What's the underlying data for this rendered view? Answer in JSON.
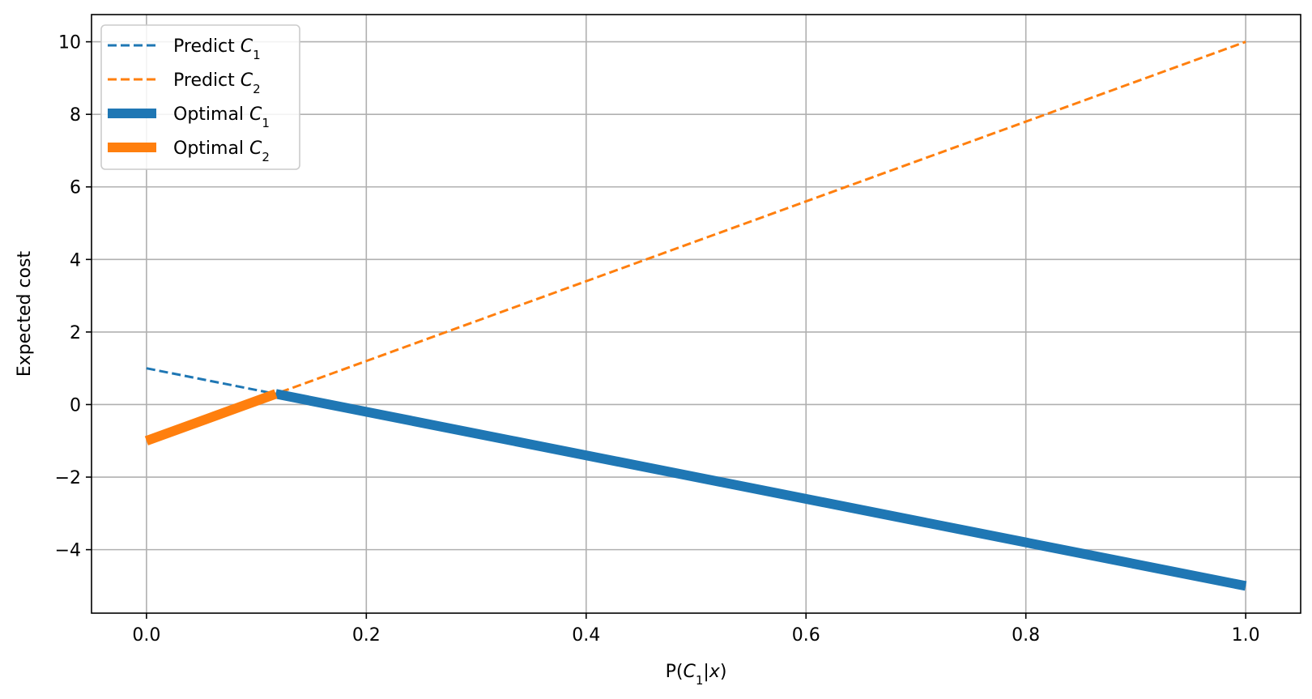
{
  "chart_data": {
    "type": "line",
    "xlabel": "P(C1|x)",
    "ylabel": "Expected cost",
    "xlim": [
      -0.05,
      1.05
    ],
    "ylim": [
      -5.75,
      10.75
    ],
    "grid": true,
    "legend_position": "top-left",
    "x_ticks": [
      0.0,
      0.2,
      0.4,
      0.6,
      0.8,
      1.0
    ],
    "x_tick_labels": [
      "0.0",
      "0.2",
      "0.4",
      "0.6",
      "0.8",
      "1.0"
    ],
    "y_ticks": [
      -4,
      -2,
      0,
      2,
      4,
      6,
      8,
      10
    ],
    "y_tick_labels": [
      "−4",
      "−2",
      "0",
      "2",
      "4",
      "6",
      "8",
      "10"
    ],
    "series": [
      {
        "name": "Predict C1",
        "style": "dashed",
        "color": "#1f77b4",
        "x": [
          0.0,
          1.0
        ],
        "y": [
          1.0,
          -5.0
        ]
      },
      {
        "name": "Predict C2",
        "style": "dashed",
        "color": "#ff7f0e",
        "x": [
          0.0,
          1.0
        ],
        "y": [
          -1.0,
          10.0
        ]
      },
      {
        "name": "Optimal C1",
        "style": "thick",
        "color": "#1f77b4",
        "x": [
          0.1176,
          1.0
        ],
        "y": [
          0.294,
          -5.0
        ]
      },
      {
        "name": "Optimal C2",
        "style": "thick",
        "color": "#ff7f0e",
        "x": [
          0.0,
          0.1176
        ],
        "y": [
          -1.0,
          0.294
        ]
      }
    ]
  }
}
